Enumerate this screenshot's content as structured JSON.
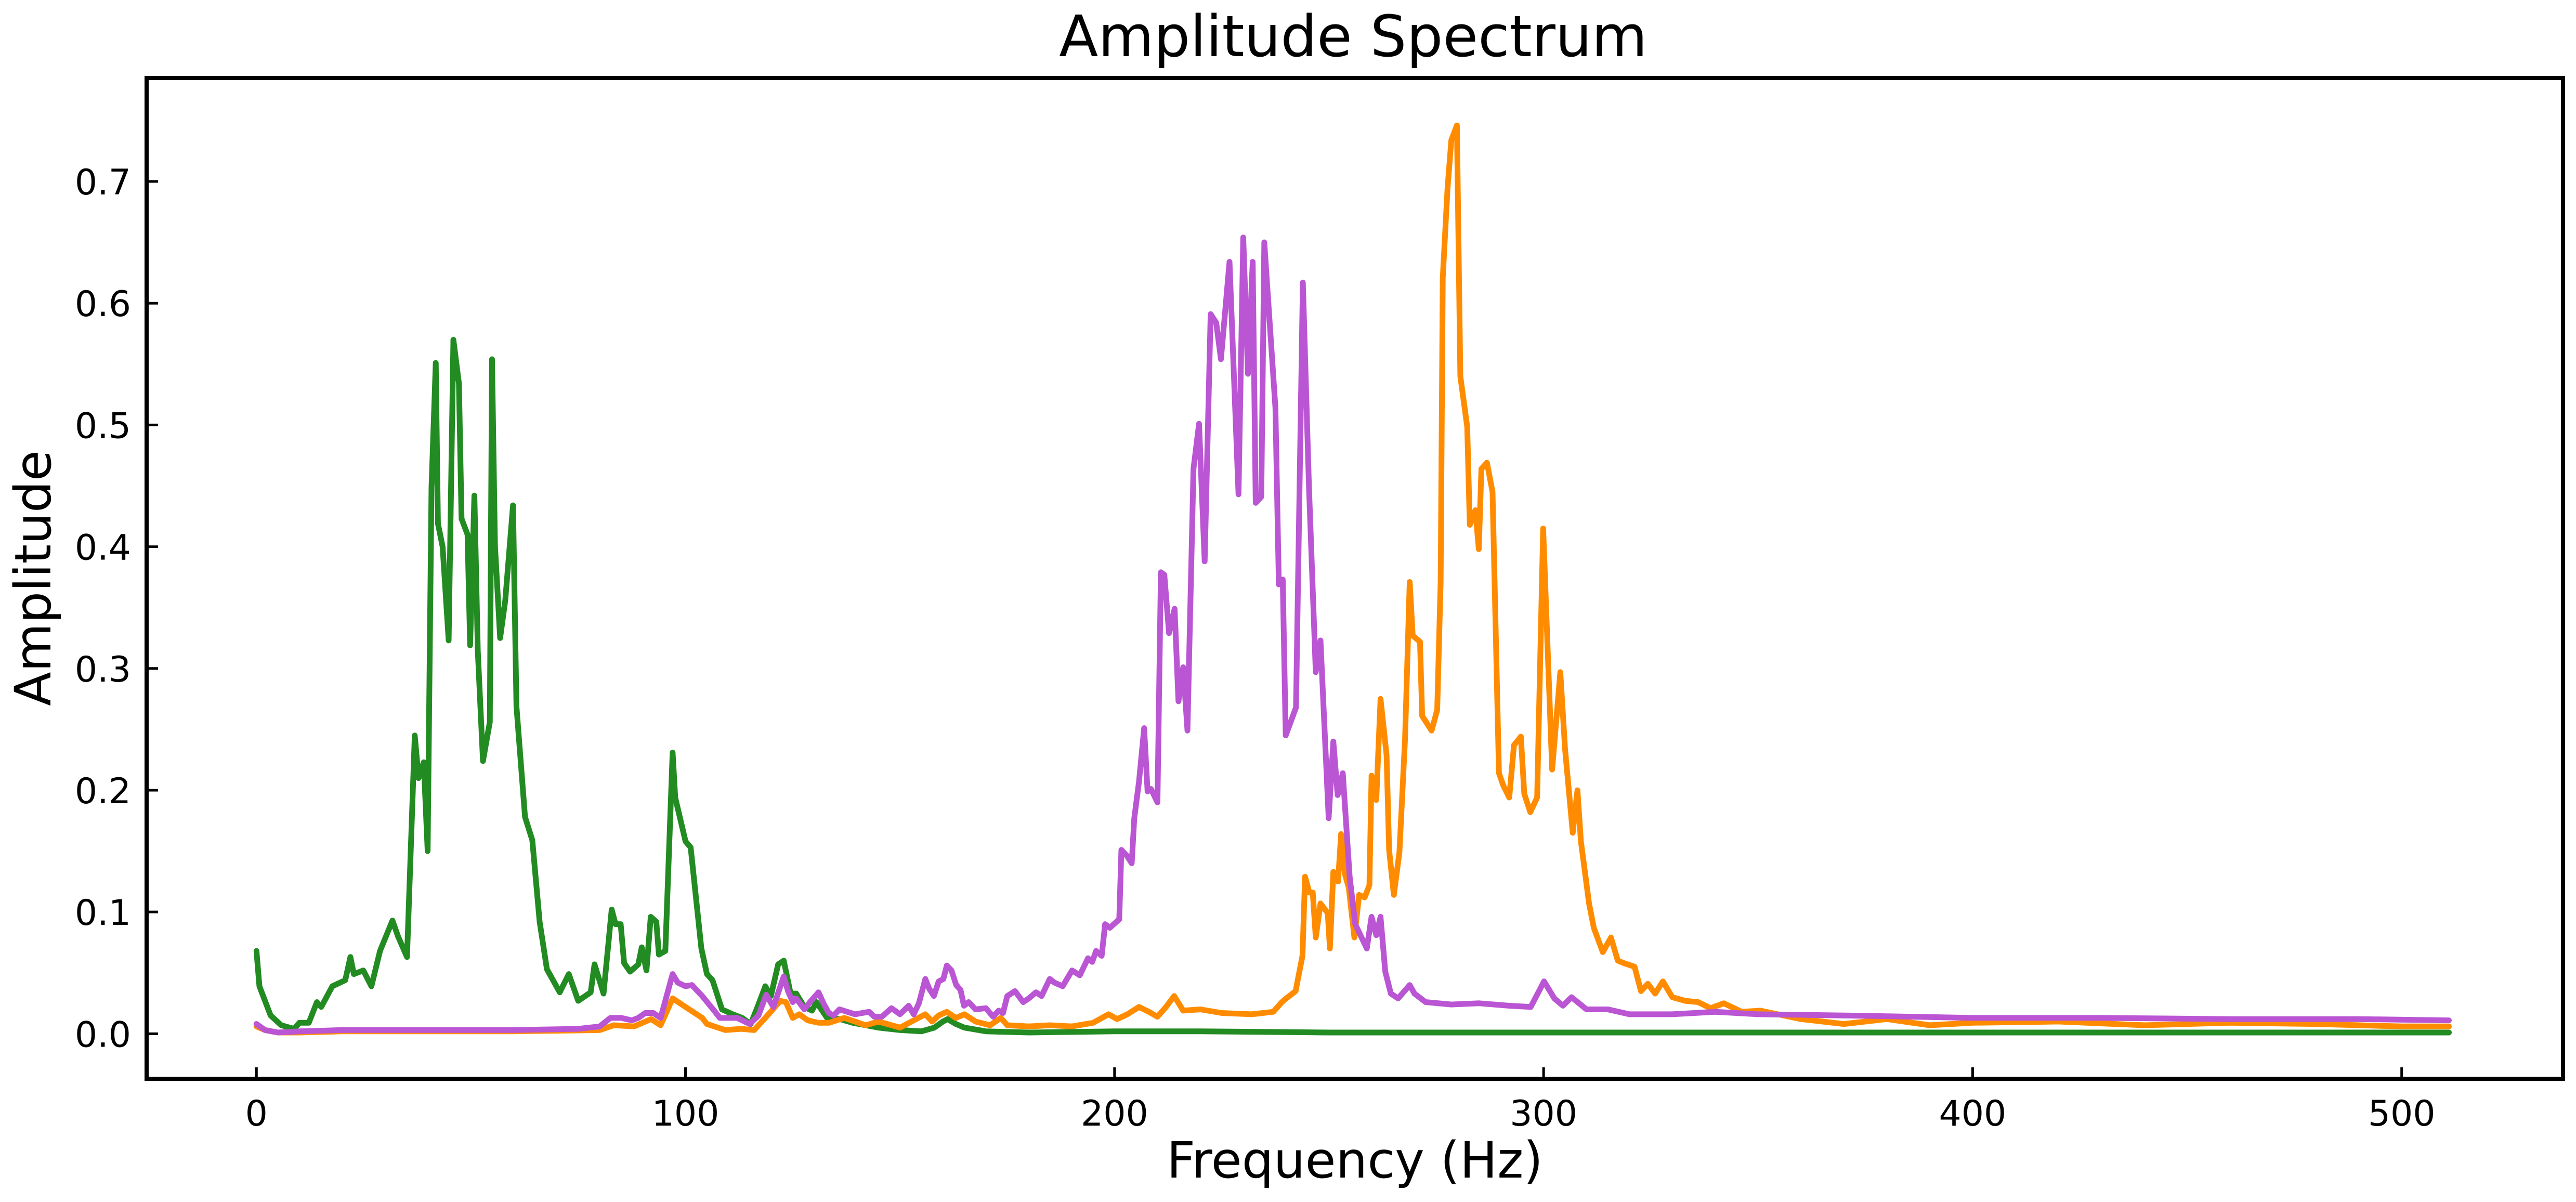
{
  "chart_data": {
    "type": "line",
    "title": "Amplitude Spectrum",
    "xlabel": "Frequency (Hz)",
    "ylabel": "Amplitude",
    "xlim": [
      -25.6,
      537.6
    ],
    "ylim": [
      -0.037,
      0.785
    ],
    "xticks": [
      0,
      100,
      200,
      300,
      400,
      500
    ],
    "xtick_labels": [
      "0",
      "100",
      "200",
      "300",
      "400",
      "500"
    ],
    "yticks": [
      0.0,
      0.1,
      0.2,
      0.3,
      0.4,
      0.5,
      0.6,
      0.7
    ],
    "ytick_labels": [
      "0.0",
      "0.1",
      "0.2",
      "0.3",
      "0.4",
      "0.5",
      "0.6",
      "0.7"
    ],
    "grid": false,
    "legend": null,
    "series": [
      {
        "name": "series-green",
        "color": "#228B22",
        "x": [
          0,
          0.7,
          3.3,
          5.8,
          8.8,
          10,
          12.2,
          14.1,
          15.1,
          17.7,
          20.7,
          21.9,
          22.7,
          24.9,
          26.8,
          28.8,
          31.7,
          33,
          35.1,
          36.9,
          37.8,
          39,
          39.9,
          40.8,
          41.8,
          42.3,
          43.4,
          44.8,
          45.9,
          47.2,
          47.8,
          49.2,
          49.8,
          50.8,
          51.6,
          52.8,
          54.4,
          54.9,
          55.6,
          56.8,
          58,
          59.8,
          60.6,
          62.6,
          64.3,
          66,
          67.7,
          70.7,
          72.8,
          75,
          77.9,
          78.8,
          80.9,
          82.8,
          83.7,
          84.9,
          85.7,
          87.1,
          89,
          89.8,
          90.9,
          91.9,
          93.2,
          93.8,
          95.3,
          97,
          97.6,
          100,
          101.2,
          103.7,
          105,
          106.3,
          108.5,
          111,
          113.2,
          115.2,
          116.9,
          118.6,
          119.9,
          121.6,
          122.9,
          124.5,
          125.8,
          127.7,
          129.5,
          130.5,
          133,
          136,
          139,
          145,
          150,
          155,
          158,
          160,
          161.1,
          163,
          165,
          170,
          180,
          200,
          220,
          250,
          300,
          350,
          400,
          450,
          511
        ],
        "y": [
          0.068,
          0.039,
          0.015,
          0.007,
          0.004,
          0.009,
          0.009,
          0.026,
          0.022,
          0.039,
          0.044,
          0.063,
          0.049,
          0.052,
          0.039,
          0.068,
          0.093,
          0.08,
          0.063,
          0.245,
          0.21,
          0.223,
          0.15,
          0.449,
          0.551,
          0.419,
          0.4,
          0.323,
          0.57,
          0.534,
          0.423,
          0.41,
          0.319,
          0.442,
          0.314,
          0.224,
          0.256,
          0.554,
          0.401,
          0.325,
          0.356,
          0.434,
          0.269,
          0.178,
          0.159,
          0.092,
          0.053,
          0.034,
          0.049,
          0.027,
          0.034,
          0.057,
          0.033,
          0.102,
          0.09,
          0.09,
          0.058,
          0.051,
          0.057,
          0.071,
          0.052,
          0.096,
          0.092,
          0.065,
          0.068,
          0.231,
          0.194,
          0.158,
          0.153,
          0.07,
          0.049,
          0.044,
          0.02,
          0.016,
          0.013,
          0.008,
          0.023,
          0.039,
          0.031,
          0.057,
          0.06,
          0.033,
          0.033,
          0.022,
          0.019,
          0.026,
          0.013,
          0.012,
          0.009,
          0.005,
          0.003,
          0.002,
          0.005,
          0.01,
          0.012,
          0.008,
          0.005,
          0.002,
          0.001,
          0.002,
          0.002,
          0.001,
          0.001,
          0.001,
          0.001,
          0.001,
          0.001
        ]
      },
      {
        "name": "series-orange",
        "color": "#FF8C00",
        "x": [
          0,
          2,
          5,
          10,
          20,
          40,
          60,
          80,
          83.3,
          88,
          92,
          94.2,
          97,
          100,
          103.9,
          105,
          109.3,
          113,
          116,
          118.6,
          122.1,
          123.4,
          125,
          126.5,
          128.5,
          131,
          133.5,
          137,
          142,
          145,
          150,
          155.9,
          157.5,
          159,
          160.9,
          163,
          165,
          167.6,
          171,
          173.5,
          175,
          180,
          185,
          190,
          195,
          198.6,
          200.6,
          203,
          205.7,
          208,
          210,
          212,
          213.9,
          216,
          220,
          225,
          232,
          237,
          239,
          240,
          242.2,
          243.8,
          244.4,
          245.4,
          246.2,
          246.9,
          248,
          249.7,
          250.2,
          251,
          252.1,
          252.8,
          253.7,
          254.6,
          255.9,
          257,
          258.3,
          259.4,
          259.9,
          261,
          262,
          263.4,
          264,
          265.1,
          266.4,
          267.7,
          268.8,
          269.5,
          271.2,
          271.7,
          273.9,
          275.2,
          276,
          276.5,
          277.6,
          278.5,
          279.8,
          280.6,
          282.2,
          282.8,
          284.1,
          284.9,
          285.5,
          286.8,
          288.1,
          289.6,
          290.6,
          292,
          293.1,
          294.7,
          295.5,
          296.9,
          298.5,
          299.9,
          301.4,
          302,
          303.9,
          305,
          306.8,
          307.9,
          308.7,
          310.6,
          311.7,
          313.8,
          315.7,
          317.3,
          318.7,
          321.2,
          322.7,
          324.3,
          326,
          327.8,
          330,
          333,
          336,
          338.9,
          342,
          346.2,
          350.5,
          360,
          370,
          380,
          390,
          400,
          420,
          440,
          460,
          480,
          500,
          511
        ],
        "y": [
          0.006,
          0.003,
          0.001,
          0.001,
          0.002,
          0.002,
          0.002,
          0.003,
          0.007,
          0.006,
          0.012,
          0.007,
          0.029,
          0.022,
          0.013,
          0.008,
          0.003,
          0.004,
          0.003,
          0.013,
          0.027,
          0.026,
          0.013,
          0.016,
          0.011,
          0.009,
          0.009,
          0.013,
          0.007,
          0.01,
          0.005,
          0.016,
          0.01,
          0.015,
          0.018,
          0.013,
          0.016,
          0.01,
          0.007,
          0.013,
          0.007,
          0.006,
          0.007,
          0.006,
          0.009,
          0.016,
          0.012,
          0.016,
          0.022,
          0.018,
          0.014,
          0.022,
          0.031,
          0.019,
          0.02,
          0.017,
          0.016,
          0.018,
          0.026,
          0.029,
          0.035,
          0.064,
          0.129,
          0.116,
          0.116,
          0.079,
          0.107,
          0.099,
          0.07,
          0.133,
          0.125,
          0.164,
          0.131,
          0.12,
          0.079,
          0.114,
          0.112,
          0.122,
          0.212,
          0.192,
          0.275,
          0.229,
          0.151,
          0.114,
          0.149,
          0.242,
          0.371,
          0.327,
          0.322,
          0.261,
          0.249,
          0.266,
          0.371,
          0.621,
          0.694,
          0.734,
          0.746,
          0.54,
          0.4985,
          0.418,
          0.43,
          0.398,
          0.464,
          0.469,
          0.445,
          0.214,
          0.204,
          0.194,
          0.237,
          0.244,
          0.197,
          0.182,
          0.194,
          0.415,
          0.273,
          0.217,
          0.297,
          0.234,
          0.165,
          0.2,
          0.158,
          0.107,
          0.087,
          0.067,
          0.079,
          0.06,
          0.058,
          0.055,
          0.035,
          0.041,
          0.033,
          0.043,
          0.03,
          0.027,
          0.026,
          0.021,
          0.025,
          0.018,
          0.019,
          0.012,
          0.008,
          0.012,
          0.007,
          0.009,
          0.01,
          0.007,
          0.009,
          0.008,
          0.006,
          0.006
        ]
      },
      {
        "name": "series-purple",
        "color": "#BA55D3",
        "x": [
          0,
          2,
          5,
          10,
          20,
          40,
          60,
          75,
          80,
          82.5,
          85,
          87.5,
          89,
          90.6,
          92.5,
          94.2,
          97,
          98.2,
          100,
          101.5,
          103.9,
          106.9,
          108,
          112,
          115,
          117,
          118.8,
          120.5,
          122.9,
          123.9,
          125,
          125.8,
          127.7,
          129,
          131,
          132.3,
          133.4,
          134.5,
          135.9,
          139.5,
          142.8,
          144,
          145.8,
          148,
          150,
          152,
          153.2,
          154.4,
          155.9,
          156.8,
          157.9,
          159,
          160.1,
          160.9,
          162,
          163.1,
          164.1,
          164.9,
          166,
          167.6,
          170,
          171.7,
          173,
          174,
          175,
          176.8,
          178.7,
          180,
          181.7,
          183,
          184.9,
          186,
          187.9,
          190.1,
          191.9,
          193.8,
          194.8,
          195.7,
          197,
          197.8,
          198.9,
          201.1,
          201.6,
          202.9,
          204,
          204.6,
          205.7,
          206.9,
          207.7,
          208.5,
          210,
          210.8,
          211.6,
          212.7,
          214,
          214.9,
          216,
          217,
          218.4,
          219.7,
          221,
          222.4,
          223.7,
          224.8,
          226.8,
          228.9,
          230,
          231.1,
          232.2,
          232.9,
          234.2,
          234.9,
          237.5,
          238.3,
          239.2,
          239.9,
          242.3,
          243.9,
          245.3,
          246.9,
          248,
          249.9,
          251,
          252,
          253.2,
          254.8,
          256.1,
          258.8,
          259.9,
          261,
          262,
          263.1,
          264.4,
          266.1,
          268.8,
          269.9,
          272.5,
          278.5,
          285,
          292,
          297,
          300.1,
          302.5,
          304.5,
          306.5,
          310,
          315,
          320,
          330,
          340,
          350,
          370,
          400,
          430,
          460,
          490,
          511
        ],
        "y": [
          0.008,
          0.003,
          0.001,
          0.002,
          0.003,
          0.003,
          0.003,
          0.004,
          0.006,
          0.013,
          0.013,
          0.011,
          0.013,
          0.017,
          0.017,
          0.013,
          0.049,
          0.042,
          0.039,
          0.04,
          0.031,
          0.018,
          0.013,
          0.013,
          0.008,
          0.015,
          0.032,
          0.022,
          0.047,
          0.035,
          0.026,
          0.029,
          0.02,
          0.026,
          0.034,
          0.024,
          0.017,
          0.015,
          0.02,
          0.016,
          0.018,
          0.014,
          0.014,
          0.021,
          0.016,
          0.023,
          0.016,
          0.025,
          0.045,
          0.037,
          0.031,
          0.043,
          0.045,
          0.056,
          0.052,
          0.04,
          0.036,
          0.023,
          0.026,
          0.02,
          0.021,
          0.014,
          0.019,
          0.017,
          0.031,
          0.035,
          0.026,
          0.029,
          0.034,
          0.031,
          0.045,
          0.042,
          0.039,
          0.052,
          0.048,
          0.062,
          0.059,
          0.068,
          0.064,
          0.09,
          0.087,
          0.094,
          0.151,
          0.146,
          0.14,
          0.177,
          0.207,
          0.251,
          0.199,
          0.201,
          0.19,
          0.379,
          0.377,
          0.329,
          0.349,
          0.273,
          0.301,
          0.249,
          0.464,
          0.501,
          0.388,
          0.591,
          0.584,
          0.554,
          0.634,
          0.443,
          0.654,
          0.542,
          0.634,
          0.436,
          0.441,
          0.65,
          0.514,
          0.369,
          0.373,
          0.245,
          0.268,
          0.617,
          0.451,
          0.297,
          0.323,
          0.177,
          0.24,
          0.196,
          0.214,
          0.129,
          0.09,
          0.07,
          0.096,
          0.081,
          0.096,
          0.051,
          0.033,
          0.029,
          0.04,
          0.033,
          0.026,
          0.024,
          0.025,
          0.023,
          0.022,
          0.043,
          0.029,
          0.023,
          0.03,
          0.02,
          0.02,
          0.016,
          0.016,
          0.018,
          0.016,
          0.015,
          0.013,
          0.013,
          0.012,
          0.012,
          0.011
        ]
      }
    ]
  },
  "labels": {
    "title": "Amplitude Spectrum",
    "xlabel": "Frequency (Hz)",
    "ylabel": "Amplitude"
  }
}
